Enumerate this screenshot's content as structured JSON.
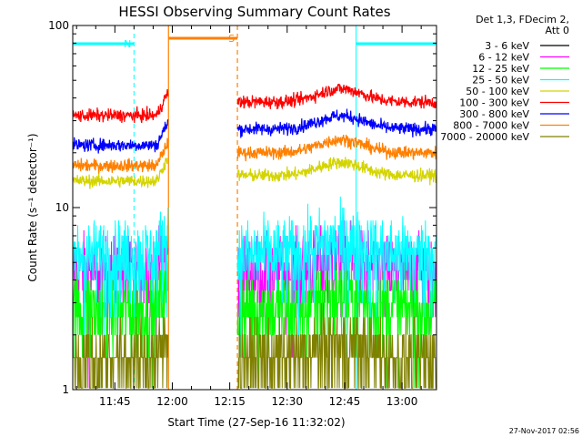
{
  "chart_data": {
    "type": "line",
    "title": "HESSI Observing Summary Count Rates",
    "xlabel": "Start Time (27-Sep-16 11:32:02)",
    "ylabel": "Count Rate (s⁻¹ detector⁻¹)",
    "y_scale": "log",
    "ylim": [
      1,
      100
    ],
    "xlim": [
      "11:34",
      "13:09"
    ],
    "x_ticks": [
      "11:45",
      "12:00",
      "12:15",
      "12:30",
      "12:45",
      "13:00"
    ],
    "y_ticks": [
      "1",
      "10",
      "100"
    ],
    "grid": false,
    "legend_header": [
      "Det 1,3, FDecim 2,",
      "Att 0"
    ],
    "legend_position": "right",
    "series": [
      {
        "name": "3 - 6 keV",
        "color": "#000000",
        "pre_flare": null,
        "post_flare": null
      },
      {
        "name": "6 - 12 keV",
        "color": "#ff00ff",
        "pre_flare": 4.5,
        "post_flare": 4.5
      },
      {
        "name": "12 - 25 keV",
        "color": "#00ff00",
        "pre_flare": 2.8,
        "post_flare": 2.8
      },
      {
        "name": "25 - 50 keV",
        "color": "#00ffff",
        "pre_flare": 5.5,
        "post_flare": 5.5
      },
      {
        "name": "50 - 100 keV",
        "color": "#d4d400",
        "pre_flare": 14,
        "post_flare": 15
      },
      {
        "name": "100 - 300 keV",
        "color": "#ff0000",
        "pre_flare": 32,
        "post_flare": 38
      },
      {
        "name": "300 - 800 keV",
        "color": "#0000ff",
        "pre_flare": 22,
        "post_flare": 27
      },
      {
        "name": "800 - 7000 keV",
        "color": "#ff8000",
        "pre_flare": 17,
        "post_flare": 20
      },
      {
        "name": "7000 - 20000 keV",
        "color": "#808000",
        "pre_flare": 1.5,
        "post_flare": 1.5
      }
    ],
    "annotations": [
      {
        "label": "N",
        "color": "#00ffff",
        "type": "night",
        "start": "11:34",
        "end": "11:50"
      },
      {
        "label": "",
        "color": "#00ffff",
        "type": "night",
        "start": "12:48",
        "end": "13:09"
      },
      {
        "label": "S",
        "color": "#ff8000",
        "type": "saa",
        "start": "11:59",
        "end": "12:17"
      }
    ],
    "data_gap": [
      "11:59",
      "12:17"
    ],
    "timestamp": "27-Nov-2017 02:56"
  }
}
